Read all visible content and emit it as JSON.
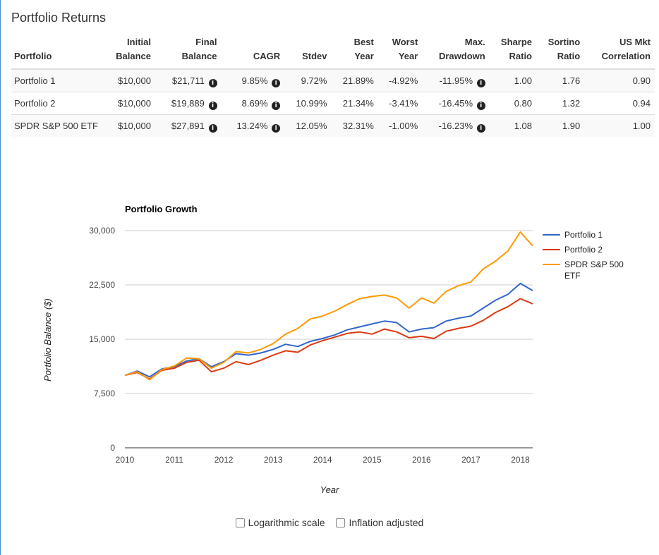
{
  "page_title": "Portfolio Returns",
  "table": {
    "headers": [
      {
        "top": "",
        "bottom": "Portfolio"
      },
      {
        "top": "Initial",
        "bottom": "Balance"
      },
      {
        "top": "Final",
        "bottom": "Balance"
      },
      {
        "top": "",
        "bottom": "CAGR"
      },
      {
        "top": "",
        "bottom": "Stdev"
      },
      {
        "top": "Best",
        "bottom": "Year"
      },
      {
        "top": "Worst",
        "bottom": "Year"
      },
      {
        "top": "Max.",
        "bottom": "Drawdown"
      },
      {
        "top": "Sharpe",
        "bottom": "Ratio"
      },
      {
        "top": "Sortino",
        "bottom": "Ratio"
      },
      {
        "top": "US Mkt",
        "bottom": "Correlation"
      }
    ],
    "rows": [
      {
        "portfolio": "Portfolio 1",
        "initial": "$10,000",
        "final": "$21,711",
        "cagr": "9.85%",
        "stdev": "9.72%",
        "best": "21.89%",
        "worst": "-4.92%",
        "drawdown": "-11.95%",
        "sharpe": "1.00",
        "sortino": "1.76",
        "corr": "0.90"
      },
      {
        "portfolio": "Portfolio 2",
        "initial": "$10,000",
        "final": "$19,889",
        "cagr": "8.69%",
        "stdev": "10.99%",
        "best": "21.34%",
        "worst": "-3.41%",
        "drawdown": "-16.45%",
        "sharpe": "0.80",
        "sortino": "1.32",
        "corr": "0.94"
      },
      {
        "portfolio": "SPDR S&P 500 ETF",
        "initial": "$10,000",
        "final": "$27,891",
        "cagr": "13.24%",
        "stdev": "12.05%",
        "best": "32.31%",
        "worst": "-1.00%",
        "drawdown": "-16.23%",
        "sharpe": "1.08",
        "sortino": "1.90",
        "corr": "1.00"
      }
    ]
  },
  "chart_data": {
    "type": "line",
    "title": "Portfolio Growth",
    "xlabel": "Year",
    "ylabel": "Portfolio Balance ($)",
    "xlim": [
      2010,
      2018.25
    ],
    "ylim": [
      0,
      30000
    ],
    "xticks": [
      "2010",
      "2011",
      "2012",
      "2013",
      "2014",
      "2015",
      "2016",
      "2017",
      "2018"
    ],
    "yticks": [
      "0",
      "7,500",
      "15,000",
      "22,500",
      "30,000"
    ],
    "grid": true,
    "legend": "right",
    "series": [
      {
        "name": "Portfolio 1",
        "color": "#3366cc",
        "x": [
          2010.0,
          2010.25,
          2010.5,
          2010.75,
          2011.0,
          2011.25,
          2011.5,
          2011.75,
          2012.0,
          2012.25,
          2012.5,
          2012.75,
          2013.0,
          2013.25,
          2013.5,
          2013.75,
          2014.0,
          2014.25,
          2014.5,
          2014.75,
          2015.0,
          2015.25,
          2015.5,
          2015.75,
          2016.0,
          2016.25,
          2016.5,
          2016.75,
          2017.0,
          2017.25,
          2017.5,
          2017.75,
          2018.0,
          2018.25
        ],
        "y": [
          10000,
          10600,
          9800,
          10900,
          11200,
          12000,
          12300,
          11200,
          11900,
          13000,
          12800,
          13100,
          13600,
          14300,
          14000,
          14700,
          15100,
          15600,
          16300,
          16700,
          17100,
          17500,
          17300,
          16000,
          16400,
          16600,
          17500,
          17900,
          18200,
          19300,
          20400,
          21200,
          22700,
          21711
        ]
      },
      {
        "name": "Portfolio 2",
        "color": "#dc3912",
        "x": [
          2010.0,
          2010.25,
          2010.5,
          2010.75,
          2011.0,
          2011.25,
          2011.5,
          2011.75,
          2012.0,
          2012.25,
          2012.5,
          2012.75,
          2013.0,
          2013.25,
          2013.5,
          2013.75,
          2014.0,
          2014.25,
          2014.5,
          2014.75,
          2015.0,
          2015.25,
          2015.5,
          2015.75,
          2016.0,
          2016.25,
          2016.5,
          2016.75,
          2017.0,
          2017.25,
          2017.5,
          2017.75,
          2018.0,
          2018.25
        ],
        "y": [
          10000,
          10400,
          9500,
          10700,
          11000,
          11800,
          12100,
          10500,
          11000,
          11900,
          11500,
          12100,
          12800,
          13400,
          13200,
          14200,
          14800,
          15300,
          15800,
          16000,
          15700,
          16400,
          16000,
          15200,
          15400,
          15100,
          16100,
          16500,
          16800,
          17600,
          18700,
          19500,
          20600,
          19889
        ]
      },
      {
        "name": "SPDR S&P 500 ETF",
        "color": "#ff9900",
        "x": [
          2010.0,
          2010.25,
          2010.5,
          2010.75,
          2011.0,
          2011.25,
          2011.5,
          2011.75,
          2012.0,
          2012.25,
          2012.5,
          2012.75,
          2013.0,
          2013.25,
          2013.5,
          2013.75,
          2014.0,
          2014.25,
          2014.5,
          2014.75,
          2015.0,
          2015.25,
          2015.5,
          2015.75,
          2016.0,
          2016.25,
          2016.5,
          2016.75,
          2017.0,
          2017.25,
          2017.5,
          2017.75,
          2018.0,
          2018.25
        ],
        "y": [
          10000,
          10500,
          9400,
          10800,
          11300,
          12400,
          12300,
          11000,
          11800,
          13300,
          13100,
          13600,
          14400,
          15700,
          16500,
          17800,
          18200,
          18900,
          19800,
          20600,
          20900,
          21100,
          20700,
          19300,
          20700,
          20000,
          21600,
          22400,
          22900,
          24700,
          25800,
          27200,
          29800,
          27891
        ]
      }
    ]
  },
  "options": {
    "log_scale_label": "Logarithmic scale",
    "inflation_label": "Inflation adjusted"
  }
}
